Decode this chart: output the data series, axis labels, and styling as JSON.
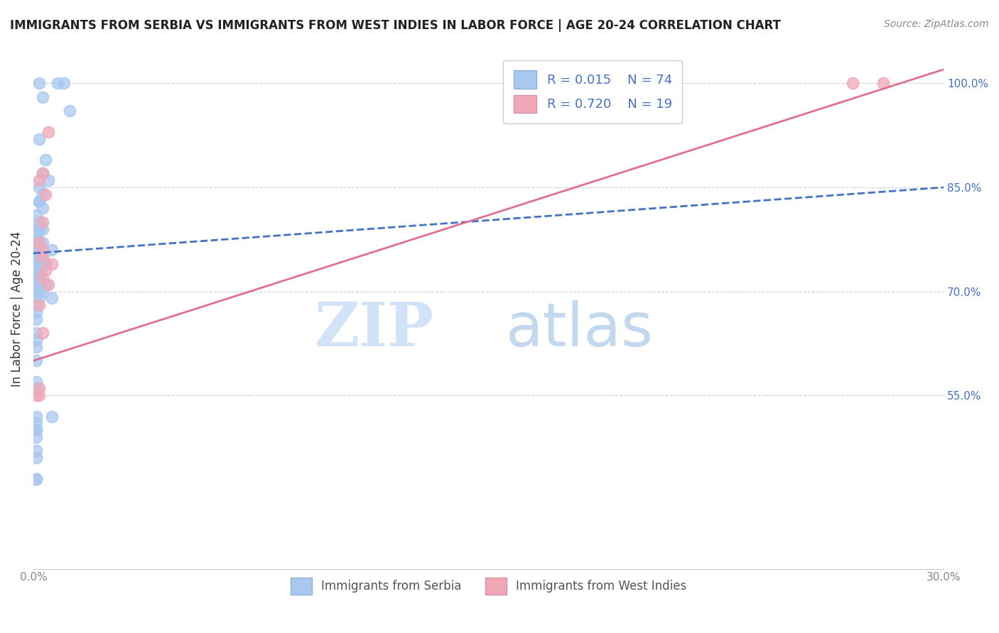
{
  "title": "IMMIGRANTS FROM SERBIA VS IMMIGRANTS FROM WEST INDIES IN LABOR FORCE | AGE 20-24 CORRELATION CHART",
  "source": "Source: ZipAtlas.com",
  "ylabel": "In Labor Force | Age 20-24",
  "xlim": [
    0.0,
    0.3
  ],
  "ylim": [
    0.3,
    1.05
  ],
  "x_ticks": [
    0.0,
    0.05,
    0.1,
    0.15,
    0.2,
    0.25,
    0.3
  ],
  "x_tick_labels": [
    "0.0%",
    "",
    "",
    "",
    "",
    "",
    "30.0%"
  ],
  "y_ticks_right": [
    0.55,
    0.7,
    0.85,
    1.0
  ],
  "y_tick_labels_right": [
    "55.0%",
    "70.0%",
    "85.0%",
    "100.0%"
  ],
  "serbia_R": "0.015",
  "serbia_N": "74",
  "westindies_R": "0.720",
  "westindies_N": "19",
  "serbia_color": "#a8c8f0",
  "westindies_color": "#f0a8b8",
  "serbia_line_color": "#4472c4",
  "westindies_line_color": "#e07090",
  "legend_R_color": "#4472c4",
  "serbia_scatter_x": [
    0.002,
    0.003,
    0.008,
    0.01,
    0.012,
    0.002,
    0.004,
    0.003,
    0.005,
    0.002,
    0.003,
    0.002,
    0.002,
    0.003,
    0.001,
    0.002,
    0.001,
    0.002,
    0.003,
    0.002,
    0.001,
    0.001,
    0.001,
    0.002,
    0.001,
    0.003,
    0.006,
    0.001,
    0.001,
    0.002,
    0.002,
    0.003,
    0.001,
    0.002,
    0.004,
    0.003,
    0.002,
    0.001,
    0.001,
    0.002,
    0.001,
    0.001,
    0.001,
    0.001,
    0.002,
    0.001,
    0.002,
    0.001,
    0.001,
    0.004,
    0.001,
    0.002,
    0.003,
    0.002,
    0.006,
    0.001,
    0.001,
    0.001,
    0.001,
    0.001,
    0.001,
    0.001,
    0.001,
    0.001,
    0.006,
    0.001,
    0.001,
    0.001,
    0.001,
    0.001,
    0.001,
    0.001,
    0.001,
    0.001
  ],
  "serbia_scatter_y": [
    1.0,
    0.98,
    1.0,
    1.0,
    0.96,
    0.92,
    0.89,
    0.87,
    0.86,
    0.85,
    0.84,
    0.83,
    0.83,
    0.82,
    0.81,
    0.8,
    0.79,
    0.79,
    0.79,
    0.79,
    0.78,
    0.78,
    0.77,
    0.77,
    0.77,
    0.77,
    0.76,
    0.76,
    0.76,
    0.76,
    0.75,
    0.75,
    0.75,
    0.75,
    0.74,
    0.74,
    0.74,
    0.74,
    0.74,
    0.73,
    0.73,
    0.73,
    0.72,
    0.72,
    0.72,
    0.72,
    0.71,
    0.71,
    0.71,
    0.71,
    0.7,
    0.7,
    0.7,
    0.69,
    0.69,
    0.68,
    0.67,
    0.66,
    0.64,
    0.63,
    0.62,
    0.6,
    0.57,
    0.56,
    0.52,
    0.52,
    0.51,
    0.5,
    0.5,
    0.49,
    0.47,
    0.46,
    0.43,
    0.43
  ],
  "westindies_scatter_x": [
    0.005,
    0.003,
    0.002,
    0.004,
    0.003,
    0.002,
    0.003,
    0.003,
    0.006,
    0.004,
    0.003,
    0.005,
    0.002,
    0.003,
    0.002,
    0.001,
    0.002,
    0.28,
    0.27
  ],
  "westindies_scatter_y": [
    0.93,
    0.87,
    0.86,
    0.84,
    0.8,
    0.77,
    0.76,
    0.75,
    0.74,
    0.73,
    0.72,
    0.71,
    0.68,
    0.64,
    0.56,
    0.55,
    0.55,
    1.0,
    1.0
  ],
  "serbia_trendline_x": [
    0.0,
    0.3
  ],
  "serbia_trendline_y": [
    0.755,
    0.85
  ],
  "westindies_trendline_x": [
    0.0,
    0.3
  ],
  "westindies_trendline_y": [
    0.6,
    1.02
  ]
}
